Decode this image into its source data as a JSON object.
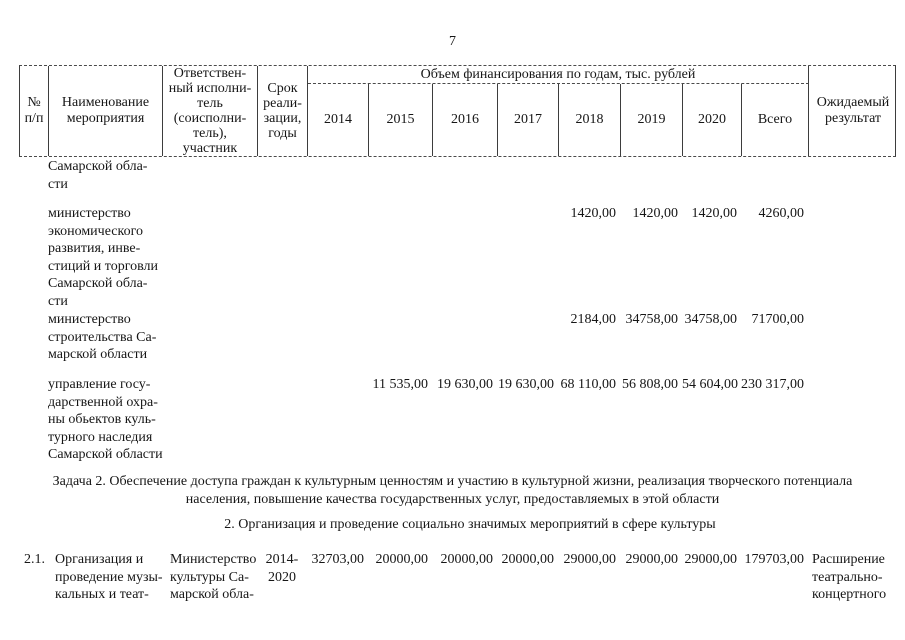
{
  "page": {
    "number": "7"
  },
  "colors": {
    "border": "#3d3d3d",
    "text": "#161616",
    "background": "#ffffff"
  },
  "table": {
    "header": {
      "col_num": "№\nп/п",
      "col_name": "Наименование\nмероприятия",
      "col_executor": "Ответствен-\nный исполни-\nтель\n(соисполни-\nтель),\nучастник",
      "col_term": "Срок\nреали-\nзации,\nгоды",
      "finance_group": "Объем финансирования по годам, тыс. рублей",
      "years": [
        "2014",
        "2015",
        "2016",
        "2017",
        "2018",
        "2019",
        "2020",
        "Всего"
      ],
      "col_result": "Ожидаемый\nрезультат"
    },
    "continuation_rows": [
      {
        "text": "Самарской обла-\nсти",
        "values": [
          "",
          "",
          "",
          "",
          "",
          "",
          "",
          ""
        ]
      },
      {
        "text": "министерство\nэкономического\nразвития, инве-\nстиций и торговли\nСамарской обла-\nсти",
        "values": [
          "",
          "",
          "",
          "",
          "1420,00",
          "1420,00",
          "1420,00",
          "4260,00"
        ]
      },
      {
        "text": "министерство\nстроительства Са-\nмарской области",
        "values": [
          "",
          "",
          "",
          "",
          "2184,00",
          "34758,00",
          "34758,00",
          "71700,00"
        ]
      },
      {
        "text": "управление госу-\nдарственной охра-\nны обьектов куль-\nтурного наследия\nСамарской области",
        "values": [
          "",
          "11 535,00",
          "19 630,00",
          "19 630,00",
          "68 110,00",
          "56 808,00",
          "54 604,00",
          "230 317,00"
        ]
      }
    ],
    "task_heading": "Задача 2. Обеспечение доступа граждан к культурным ценностям и участию в культурной жизни, реализация творческого потенциала\nнаселения, повышение качества государственных услуг, предоставляемых в этой области",
    "section_heading": "2. Организация и проведение социально значимых мероприятий в сфере культуры",
    "data_rows": [
      {
        "num": "2.1.",
        "name": "Организация и\nпроведение музы-\nкальных и теат-",
        "executor": "Министерство\nкультуры Са-\nмарской обла-",
        "term": "2014-\n2020",
        "values": [
          "32703,00",
          "20000,00",
          "20000,00",
          "20000,00",
          "29000,00",
          "29000,00",
          "29000,00",
          "179703,00"
        ],
        "result": "Расширение\nтеатрально-\nконцертного"
      }
    ]
  }
}
